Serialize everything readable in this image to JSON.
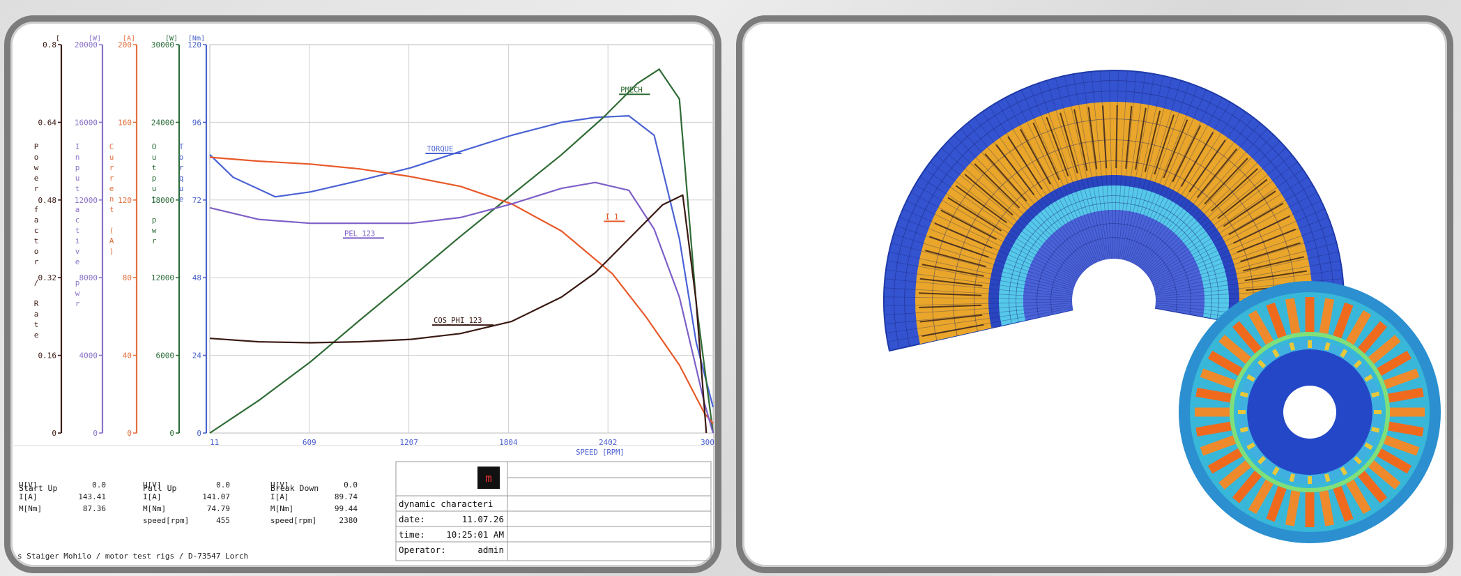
{
  "chart_data": {
    "type": "line",
    "xlabel": "SPEED [RPM]",
    "x_ticks": [
      "11",
      "609",
      "1207",
      "1804",
      "2402",
      "300"
    ],
    "xlim": [
      11,
      3000
    ],
    "y_axes": [
      {
        "key": "pf",
        "unit": "[",
        "label": "Power factor / Rate",
        "ticks": [
          "0.8",
          "0.64",
          "0.48",
          "0.32",
          "0.16",
          "0"
        ],
        "range": [
          0,
          0.8
        ],
        "color": "#3a1a14"
      },
      {
        "key": "pin",
        "unit": "[W]",
        "label": "Input active pwr",
        "ticks": [
          "20000",
          "16000",
          "12000",
          "8000",
          "4000",
          "0"
        ],
        "range": [
          0,
          20000
        ],
        "color": "#8a72c8"
      },
      {
        "key": "cur",
        "unit": "[A]",
        "label": "Current (A)",
        "ticks": [
          "200",
          "160",
          "120",
          "80",
          "40",
          "0"
        ],
        "range": [
          0,
          200
        ],
        "color": "#e2703e"
      },
      {
        "key": "pout",
        "unit": "[W]",
        "label": "Output pwr",
        "ticks": [
          "30000",
          "24000",
          "18000",
          "12000",
          "6000",
          "0"
        ],
        "range": [
          0,
          30000
        ],
        "color": "#2d6e3c"
      },
      {
        "key": "tq",
        "unit": "[Nm]",
        "label": "Torque",
        "ticks": [
          "120",
          "96",
          "72",
          "48",
          "24",
          "0"
        ],
        "range": [
          0,
          120
        ],
        "color": "#4a62c8"
      }
    ],
    "series": [
      {
        "name": "TORQUE",
        "axis": "tq",
        "color": "#4a62d4",
        "x": [
          11,
          150,
          400,
          609,
          900,
          1207,
          1500,
          1804,
          2100,
          2300,
          2500,
          2650,
          2800,
          2900,
          3000
        ],
        "y": [
          86,
          79,
          73,
          74.5,
          78,
          82,
          87,
          92,
          96,
          97.5,
          98,
          92,
          60,
          28,
          8
        ]
      },
      {
        "name": "PMECH",
        "axis": "pout",
        "color": "#2f6b35",
        "x": [
          11,
          300,
          609,
          900,
          1207,
          1500,
          1804,
          2100,
          2350,
          2550,
          2680,
          2800,
          2900,
          3000
        ],
        "y": [
          0,
          2500,
          5500,
          8700,
          12000,
          15200,
          18400,
          21500,
          24400,
          27000,
          28100,
          25800,
          10000,
          0
        ]
      },
      {
        "name": "I_1",
        "axis": "cur",
        "color": "#e85a2a",
        "x": [
          11,
          300,
          609,
          900,
          1207,
          1500,
          1804,
          2100,
          2402,
          2600,
          2800,
          2950,
          3000
        ],
        "y": [
          142,
          140,
          138.5,
          136,
          132,
          127,
          118,
          104,
          82,
          60,
          35,
          10,
          5
        ]
      },
      {
        "name": "PEL_123",
        "axis": "pin",
        "color": "#7e5fc8",
        "x": [
          11,
          300,
          609,
          900,
          1207,
          1500,
          1804,
          2100,
          2300,
          2500,
          2650,
          2800,
          2950,
          3000
        ],
        "y": [
          11600,
          11000,
          10800,
          10800,
          10800,
          11100,
          11800,
          12600,
          12900,
          12500,
          10500,
          7000,
          1500,
          0
        ]
      },
      {
        "name": "COS_PHI_123",
        "axis": "pf",
        "color": "#3a1a14",
        "x": [
          11,
          300,
          609,
          900,
          1207,
          1500,
          1804,
          2100,
          2300,
          2500,
          2700,
          2820,
          2900,
          2960
        ],
        "y": [
          0.195,
          0.188,
          0.186,
          0.188,
          0.193,
          0.205,
          0.23,
          0.28,
          0.33,
          0.4,
          0.47,
          0.49,
          0.27,
          0
        ]
      }
    ],
    "series_label_points": [
      {
        "name": "TORQUE",
        "x": 1300,
        "y_pct": 0.28
      },
      {
        "name": "PMECH",
        "x": 2450,
        "y_pct": 0.128
      },
      {
        "name": "I_1",
        "x": 2360,
        "y_pct": 0.455
      },
      {
        "name": "PEL_123",
        "x": 810,
        "y_pct": 0.498
      },
      {
        "name": "COS_PHI_123",
        "x": 1340,
        "y_pct": 0.722
      }
    ],
    "grid": true
  },
  "results": {
    "start_up": {
      "title": "Start Up",
      "rows": [
        [
          "U[V]",
          "0.0"
        ],
        [
          "I[A]",
          "143.41"
        ],
        [
          "M[Nm]",
          "87.36"
        ]
      ]
    },
    "pull_up": {
      "title": "Pull Up",
      "rows": [
        [
          "U[V]",
          "0.0"
        ],
        [
          "I[A]",
          "141.07"
        ],
        [
          "M[Nm]",
          "74.79"
        ],
        [
          "speed[rpm]",
          "455"
        ]
      ]
    },
    "break_down": {
      "title": "Break Down",
      "rows": [
        [
          "U[V]",
          "0.0"
        ],
        [
          "I[A]",
          "89.74"
        ],
        [
          "M[Nm]",
          "99.44"
        ],
        [
          "speed[rpm]",
          "2380"
        ]
      ]
    }
  },
  "info_box": {
    "title": "dynamic characteri",
    "date_label": "date:",
    "date_value": "11.07.26",
    "time_label": "time:",
    "time_value": "10:25:01 AM",
    "operator_label": "Operator:",
    "operator_value": "admin",
    "logo_text": "m"
  },
  "footer": "s Staiger Mohilo / motor test rigs / D-73547 Lorch",
  "colors": {
    "frame": "#7c7c7c",
    "mesh_outer": "#3d5bd6",
    "mesh_slot": "#f0a020",
    "mesh_inner": "#56c8ea",
    "flux_outer": "#38b7d8",
    "flux_hot": "#ff6a1e",
    "flux_core": "#2447c7"
  }
}
